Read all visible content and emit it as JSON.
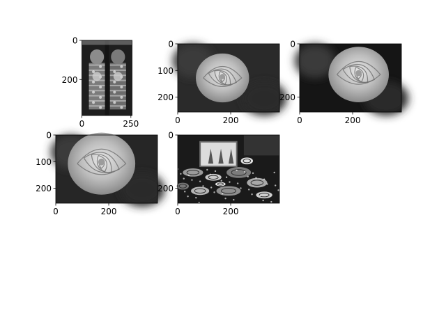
{
  "figure": {
    "background": "#ffffff",
    "colormap": "gray"
  },
  "chart_data": [
    {
      "type": "image",
      "name": "panel-1",
      "subject": "carved-figures",
      "image_extent": {
        "width": 256,
        "height": 384
      },
      "xticks": [
        0,
        250
      ],
      "yticks": [
        0,
        200
      ],
      "xtick_labels": [
        "0",
        "250"
      ],
      "ytick_labels": [
        "0",
        "200"
      ]
    },
    {
      "type": "image",
      "name": "panel-2",
      "subject": "rose",
      "image_extent": {
        "width": 384,
        "height": 256
      },
      "xticks": [
        0,
        200
      ],
      "yticks": [
        0,
        100,
        200
      ],
      "xtick_labels": [
        "0",
        "200"
      ],
      "ytick_labels": [
        "0",
        "100",
        "200"
      ]
    },
    {
      "type": "image",
      "name": "panel-3",
      "subject": "rose",
      "image_extent": {
        "width": 384,
        "height": 256
      },
      "xticks": [
        0,
        200
      ],
      "yticks": [
        0,
        200
      ],
      "xtick_labels": [
        "0",
        "200"
      ],
      "ytick_labels": [
        "0",
        "200"
      ]
    },
    {
      "type": "image",
      "name": "panel-4",
      "subject": "rose",
      "image_extent": {
        "width": 384,
        "height": 256
      },
      "xticks": [
        0,
        200
      ],
      "yticks": [
        0,
        100,
        200
      ],
      "xtick_labels": [
        "0",
        "200"
      ],
      "ytick_labels": [
        "0",
        "100",
        "200"
      ]
    },
    {
      "type": "image",
      "name": "panel-5",
      "subject": "tabletop",
      "image_extent": {
        "width": 384,
        "height": 256
      },
      "xticks": [
        0,
        200
      ],
      "yticks": [
        0,
        200
      ],
      "xtick_labels": [
        "0",
        "200"
      ],
      "ytick_labels": [
        "0",
        "200"
      ]
    }
  ]
}
